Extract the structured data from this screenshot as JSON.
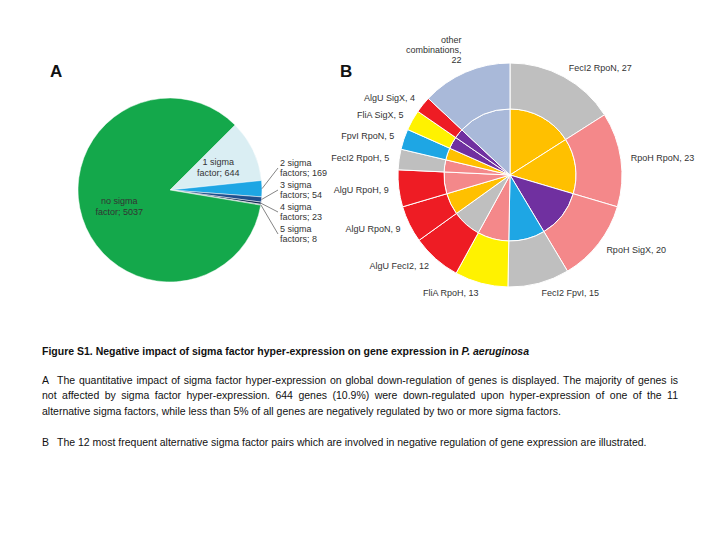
{
  "chart_data": [
    {
      "type": "pie",
      "title": "A",
      "categories": [
        "1 sigma factor",
        "2 sigma factors",
        "3 sigma factors",
        "4 sigma factors",
        "5 sigma factors",
        "no sigma factor"
      ],
      "values": [
        644,
        169,
        54,
        23,
        8,
        5037
      ],
      "value_labels": [
        "1 sigma factor; 644",
        "2 sigma factors; 169",
        "3 sigma factors; 54",
        "4 sigma factors; 23",
        "5 sigma factors; 8",
        "no sigma factor; 5037"
      ],
      "colors": [
        "#daeef3",
        "#1ea6e4",
        "#1f4e8c",
        "#0f2750",
        "#5a6b80",
        "#14a84b"
      ]
    },
    {
      "type": "pie",
      "title": "B",
      "categories": [
        "FecI2 RpoN",
        "RpoH RpoN",
        "RpoH SigX",
        "FecI2 FpvI",
        "FliA RpoH",
        "AlgU FecI2",
        "AlgU RpoN",
        "AlgU RpoH",
        "FecI2 RpoH",
        "FpvI RpoN",
        "FliA SigX",
        "AlgU SigX",
        "other combinations"
      ],
      "value_labels": [
        "FecI2 RpoN, 27",
        "RpoH RpoN, 23",
        "RpoH SigX, 20",
        "FecI2 FpvI, 15",
        "FliA RpoH, 13",
        "AlgU FecI2, 12",
        "AlgU RpoN, 9",
        "AlgU RpoH, 9",
        "FecI2 RpoH, 5",
        "FpvI RpoN, 5",
        "FliA SigX, 5",
        "AlgU SigX, 4",
        "other combinations, 22"
      ],
      "series": [
        {
          "values": [
            27,
            23,
            20,
            15,
            13,
            12,
            9,
            9,
            5,
            5,
            5,
            4,
            22
          ],
          "colors": [
            "#bfbfbf",
            "#f4888a",
            "#f4888a",
            "#bfbfbf",
            "#fff200",
            "#ee1c24",
            "#ee1c24",
            "#ee1c24",
            "#bfbfbf",
            "#1ea6e4",
            "#fff200",
            "#ee1c24",
            "#a9b9d9"
          ]
        },
        {
          "values": [
            27,
            23,
            20,
            15,
            13,
            12,
            9,
            9,
            5,
            5,
            5,
            4,
            22
          ],
          "colors": [
            "#ffc000",
            "#ffc000",
            "#7030a0",
            "#1ea6e4",
            "#f4888a",
            "#bfbfbf",
            "#ffc000",
            "#f4888a",
            "#f4888a",
            "#ffc000",
            "#7030a0",
            "#7030a0",
            "#a9b9d9"
          ]
        }
      ]
    }
  ],
  "caption": {
    "title": {
      "text": "Figure S1. Negative impact of sigma factor hyper-expression on gene expression in",
      "italic": "P. aeruginosa"
    },
    "paragraphs": [
      {
        "label": "A",
        "text": "The quantitative impact of sigma factor hyper-expression on global down-regulation of genes is displayed. The majority of genes is not affected by sigma factor hyper-expression. 644 genes (10.9%) were down-regulated upon hyper-expression of one of the 11 alternative sigma factors, while less than 5% of all genes are negatively regulated by two or more sigma factors."
      },
      {
        "label": "B",
        "text": "The 12 most frequent alternative sigma factor pairs which are involved in negative regulation of gene expression are illustrated."
      }
    ]
  }
}
